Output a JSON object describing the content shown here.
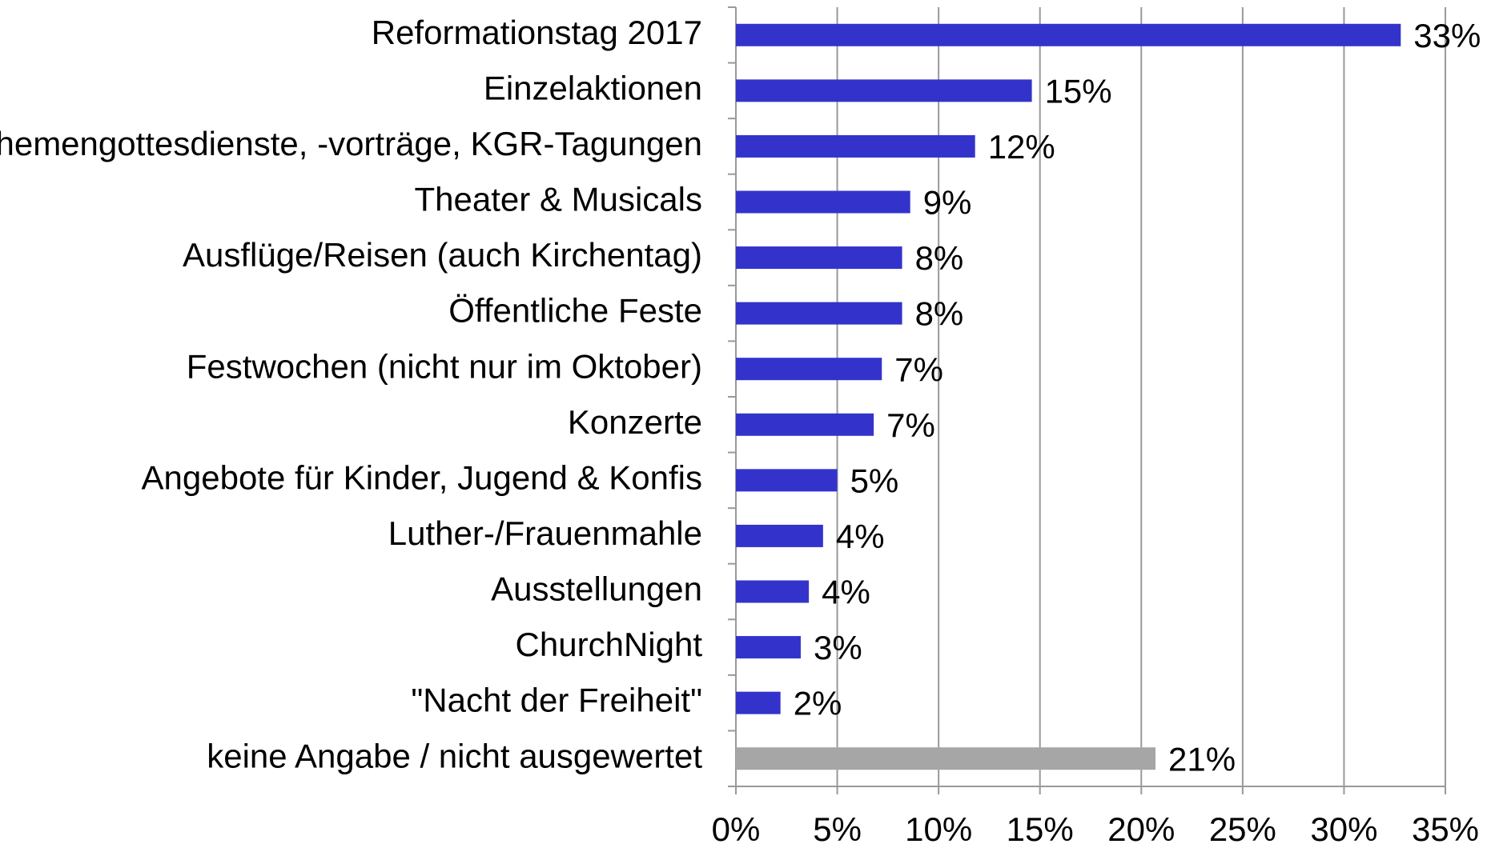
{
  "chart_data": {
    "type": "barh",
    "categories": [
      "Reformationstag 2017",
      "Einzelaktionen",
      "Themengottesdienste, -vorträge, KGR-Tagungen",
      "Theater & Musicals",
      "Ausflüge/Reisen (auch Kirchentag)",
      "Öffentliche Feste",
      "Festwochen (nicht nur im Oktober)",
      "Konzerte",
      "Angebote für Kinder, Jugend & Konfis",
      "Luther-/Frauenmahle",
      "Ausstellungen",
      "ChurchNight",
      "\"Nacht der Freiheit\"",
      "keine Angabe / nicht ausgewertet"
    ],
    "values": [
      32.8,
      14.6,
      11.8,
      8.6,
      8.2,
      8.2,
      7.2,
      6.8,
      5.0,
      4.3,
      3.6,
      3.2,
      2.2,
      20.7
    ],
    "value_labels": [
      "33%",
      "15%",
      "12%",
      "9%",
      "8%",
      "8%",
      "7%",
      "7%",
      "5%",
      "4%",
      "4%",
      "3%",
      "2%",
      "21%"
    ],
    "colors": [
      "#3333cc",
      "#3333cc",
      "#3333cc",
      "#3333cc",
      "#3333cc",
      "#3333cc",
      "#3333cc",
      "#3333cc",
      "#3333cc",
      "#3333cc",
      "#3333cc",
      "#3333cc",
      "#3333cc",
      "#a6a6a6"
    ],
    "xlim": [
      0,
      35
    ],
    "xticks": [
      {
        "value": 0,
        "label": "0%"
      },
      {
        "value": 5,
        "label": "5%"
      },
      {
        "value": 10,
        "label": "10%"
      },
      {
        "value": 15,
        "label": "15%"
      },
      {
        "value": 20,
        "label": "20%"
      },
      {
        "value": 25,
        "label": "25%"
      },
      {
        "value": 30,
        "label": "30%"
      },
      {
        "value": 35,
        "label": "35%"
      }
    ],
    "grid": true
  }
}
